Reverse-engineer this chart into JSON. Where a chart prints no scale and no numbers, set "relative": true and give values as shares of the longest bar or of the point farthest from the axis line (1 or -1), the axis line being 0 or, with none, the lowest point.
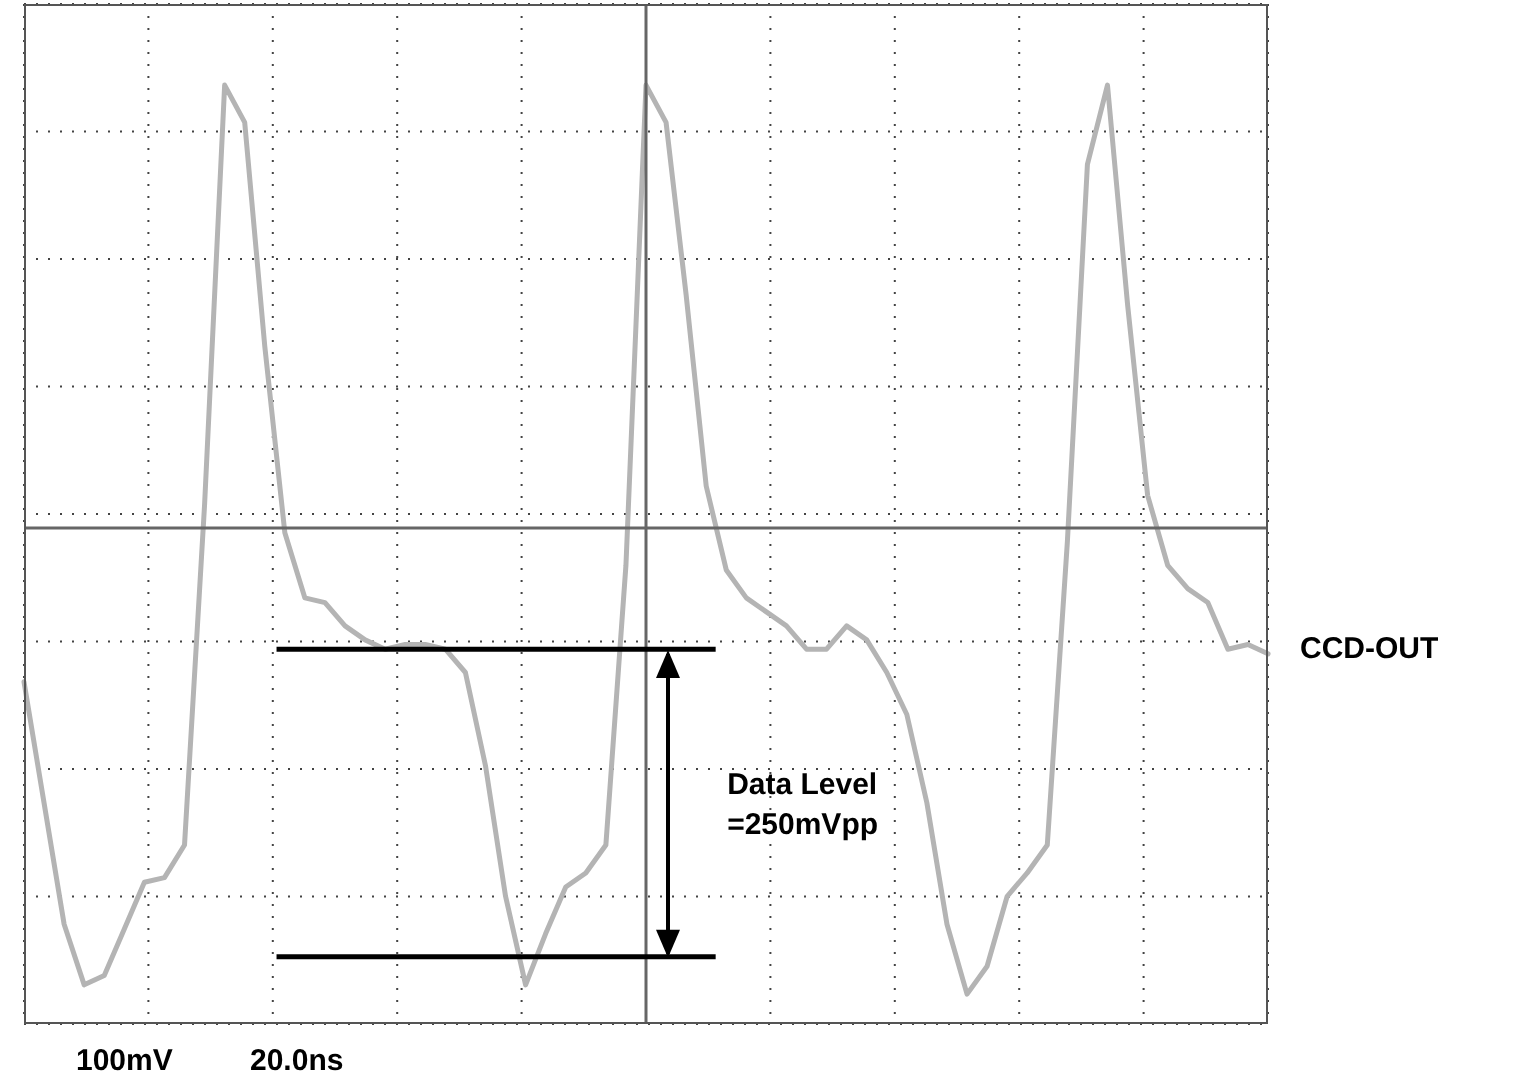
{
  "chart_data": {
    "type": "line",
    "relative": true,
    "grid": true,
    "marker": "none",
    "line_style": "solid",
    "categories": [
      null,
      null,
      null,
      null,
      null,
      null,
      null,
      null,
      null,
      null,
      null,
      null,
      null,
      null,
      null,
      null,
      null,
      null,
      null,
      null,
      null,
      null,
      null,
      null,
      null,
      null,
      null,
      null,
      null,
      null,
      null,
      null,
      null,
      null,
      null,
      null,
      null,
      null,
      null,
      null,
      null,
      null,
      null,
      null,
      null,
      null,
      null,
      null,
      null,
      null,
      null,
      null,
      null,
      null,
      null,
      null,
      null,
      null,
      null,
      null,
      null,
      null,
      null
    ],
    "series": [
      {
        "color": "#b4b4b4",
        "values": [
          -0.33,
          -0.59,
          -0.85,
          -0.98,
          -0.96,
          -0.86,
          -0.76,
          -0.75,
          -0.68,
          0.05,
          0.95,
          0.87,
          0.39,
          -0.01,
          -0.15,
          -0.16,
          -0.21,
          -0.24,
          -0.26,
          -0.25,
          -0.25,
          -0.26,
          -0.31,
          -0.51,
          -0.79,
          -0.98,
          -0.87,
          -0.77,
          -0.74,
          -0.68,
          -0.08,
          0.95,
          0.87,
          0.5,
          0.09,
          -0.09,
          -0.15,
          -0.18,
          -0.21,
          -0.26,
          -0.26,
          -0.21,
          -0.24,
          -0.31,
          -0.4,
          -0.59,
          -0.85,
          -1,
          -0.94,
          -0.79,
          -0.74,
          -0.68,
          -0.03,
          0.78,
          0.95,
          0.48,
          0.07,
          -0.08,
          -0.13,
          -0.16,
          -0.26,
          -0.25,
          -0.27
        ]
      }
    ],
    "ref_lines": [
      {
        "axis": "y",
        "value": -0.26,
        "color": "#000000"
      },
      {
        "axis": "y",
        "value": -0.92,
        "color": "#000000"
      }
    ],
    "annotations": [
      "CCD-OUT",
      "Data Level =250mVpp",
      "100mV",
      "20.0ns"
    ]
  }
}
